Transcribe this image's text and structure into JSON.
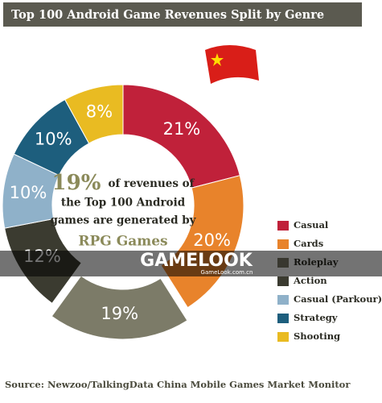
{
  "chart_data": {
    "type": "donut",
    "title": "Top 100 Android Game Revenues Split by Genre",
    "categories": [
      "Casual",
      "Cards",
      "Roleplay",
      "Action",
      "Casual (Parkour)",
      "Strategy",
      "Shooting"
    ],
    "values": [
      21,
      20,
      19,
      12,
      10,
      10,
      8
    ],
    "value_labels": [
      "21%",
      "20%",
      "19%",
      "12%",
      "10%",
      "10%",
      "8%"
    ],
    "colors": [
      "#c0213a",
      "#e8832b",
      "#7c7b68",
      "#3b3b30",
      "#8fb1c9",
      "#1d5e7d",
      "#e9bb22"
    ],
    "exploded": [
      false,
      false,
      true,
      false,
      false,
      false,
      false
    ],
    "center_text": {
      "highlight": "19%",
      "lines": [
        "of revenues of",
        "the Top 100 Android",
        "games are generated by"
      ],
      "emphasis": "RPG Games"
    },
    "source": "Source: Newzoo/TalkingData China Mobile Games Market Monitor",
    "watermark": {
      "brand": "GAMELOOK",
      "site": "GameLook.com.cn"
    }
  }
}
